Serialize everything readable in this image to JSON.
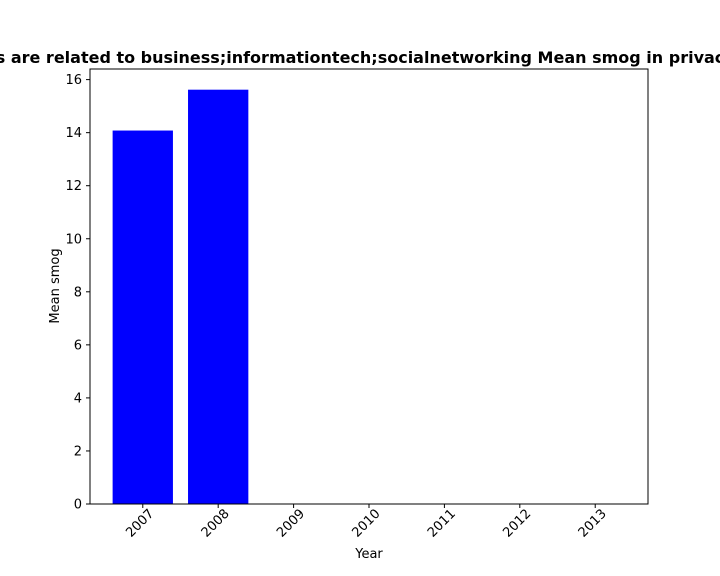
{
  "chart_data": {
    "type": "bar",
    "title": "Mean smog in private apps that are related to business;informationtech;socialnetworking",
    "title_visible": "s are related to business;informationtech;socialnetworking Mean smog in privac",
    "xlabel": "Year",
    "ylabel": "Mean smog",
    "categories": [
      "2007",
      "2008",
      "2009",
      "2010",
      "2011",
      "2012",
      "2013"
    ],
    "values": [
      14.08,
      15.62,
      0,
      0,
      0,
      0,
      0
    ],
    "ylim": [
      0,
      16.4
    ],
    "yticks": [
      0,
      2,
      4,
      6,
      8,
      10,
      12,
      14,
      16
    ],
    "grid": false,
    "legend": "none",
    "bar_color": "#0000ff"
  }
}
